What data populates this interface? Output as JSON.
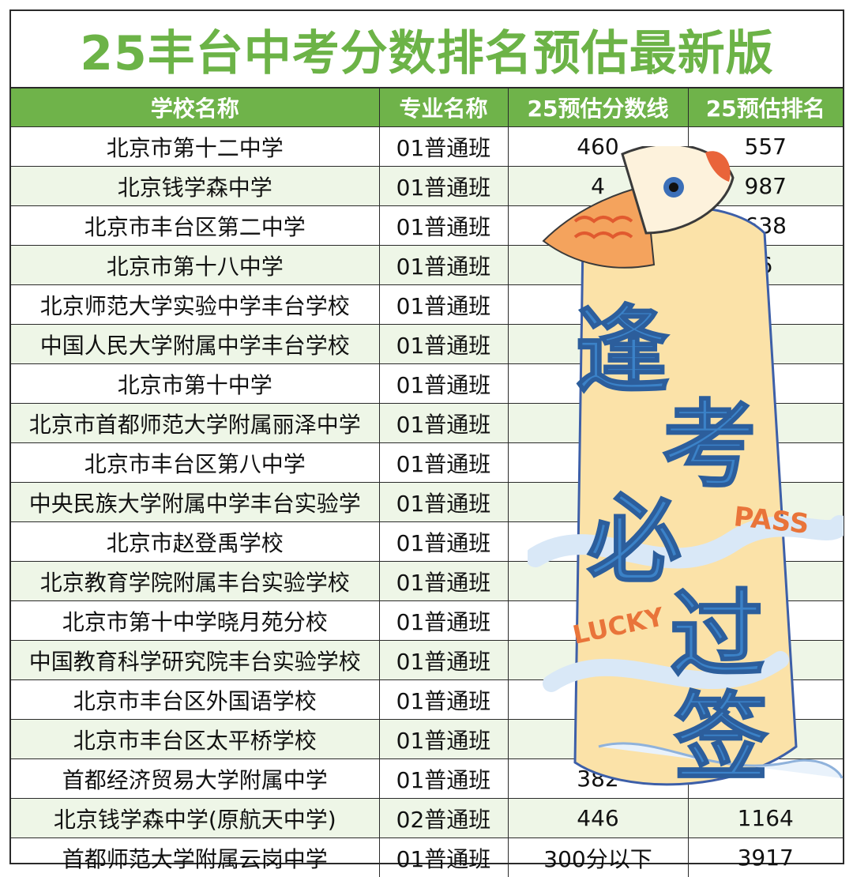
{
  "title": "25丰台中考分数排名预估最新版",
  "colors": {
    "accent": "#6cb347",
    "header_bg": "#6fb34a",
    "row_alt": "#eef6e7"
  },
  "columns": [
    "学校名称",
    "专业名称",
    "25预估分数线",
    "25预估排名"
  ],
  "rows": [
    [
      "北京市第十二中学",
      "01普通班",
      "460",
      "557"
    ],
    [
      "北京钱学森中学",
      "01普通班",
      "4",
      "987"
    ],
    [
      "北京市丰台区第二中学",
      "01普通班",
      "4",
      "638"
    ],
    [
      "北京市第十八中学",
      "01普通班",
      "",
      "6"
    ],
    [
      "北京师范大学实验中学丰台学校",
      "01普通班",
      "",
      ""
    ],
    [
      "中国人民大学附属中学丰台学校",
      "01普通班",
      "",
      ""
    ],
    [
      "北京市第十中学",
      "01普通班",
      "",
      ""
    ],
    [
      "北京市首都师范大学附属丽泽中学",
      "01普通班",
      "",
      ""
    ],
    [
      "北京市丰台区第八中学",
      "01普通班",
      "",
      ""
    ],
    [
      "中央民族大学附属中学丰台实验学",
      "01普通班",
      "4",
      ""
    ],
    [
      "北京市赵登禹学校",
      "01普通班",
      "4",
      ""
    ],
    [
      "北京教育学院附属丰台实验学校",
      "01普通班",
      "4",
      ""
    ],
    [
      "北京市第十中学晓月苑分校",
      "01普通班",
      "",
      ""
    ],
    [
      "中国教育科学研究院丰台实验学校",
      "01普通班",
      "",
      ""
    ],
    [
      "北京市丰台区外国语学校",
      "01普通班",
      "39",
      ""
    ],
    [
      "北京市丰台区太平桥学校",
      "01普通班",
      "38",
      ""
    ],
    [
      "首都经济贸易大学附属中学",
      "01普通班",
      "382",
      ""
    ],
    [
      "北京钱学森中学(原航天中学)",
      "02普通班",
      "446",
      "1164"
    ],
    [
      "首都师范大学附属云岗中学",
      "01普通班",
      "300分以下",
      "3917"
    ]
  ],
  "sticker": {
    "slogan_chars": [
      "逢",
      "考",
      "必",
      "过",
      "签"
    ],
    "tag_pass": "PASS",
    "tag_lucky": "LUCKY",
    "icon": "koi-fish-icon"
  }
}
